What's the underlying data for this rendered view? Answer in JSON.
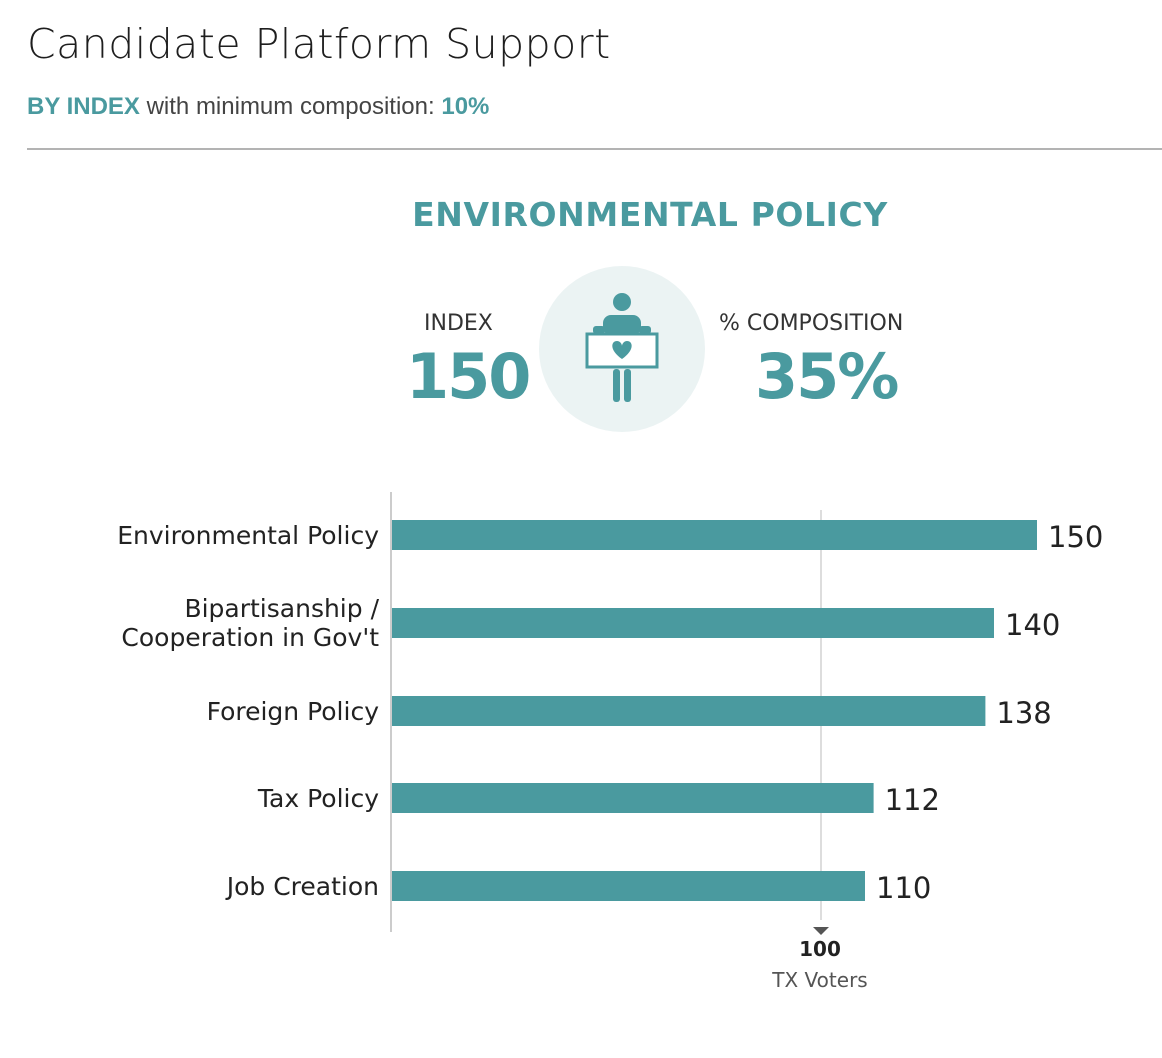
{
  "header": {
    "title": "Candidate Platform Support",
    "subtitle_prefix": "BY INDEX",
    "subtitle_middle": " with minimum composition: ",
    "subtitle_value": "10%"
  },
  "highlight": {
    "title": "ENVIRONMENTAL POLICY",
    "index_label": "INDEX",
    "index_value": "150",
    "composition_label": "% COMPOSITION",
    "composition_value": "35%",
    "icon": "person-holding-heart-sign-icon"
  },
  "colors": {
    "accent": "#4a9a9f",
    "bar": "#4a9a9f",
    "icon_bg": "#ebf3f3",
    "reference_line": "#dddddd",
    "axis_line": "#cccccc",
    "marker": "#555555"
  },
  "chart_data": {
    "type": "bar",
    "orientation": "horizontal",
    "categories": [
      "Environmental Policy",
      "Bipartisanship / Cooperation in Gov't",
      "Foreign Policy",
      "Tax Policy",
      "Job Creation"
    ],
    "category_lines": [
      [
        "Environmental Policy"
      ],
      [
        "Bipartisanship /",
        "Cooperation in Gov't"
      ],
      [
        "Foreign Policy"
      ],
      [
        "Tax Policy"
      ],
      [
        "Job Creation"
      ]
    ],
    "values": [
      150,
      140,
      138,
      112,
      110
    ],
    "xlim": [
      0,
      150
    ],
    "reference": {
      "value": 100,
      "label": "100",
      "name": "TX Voters"
    },
    "grid": false,
    "legend": "none"
  }
}
